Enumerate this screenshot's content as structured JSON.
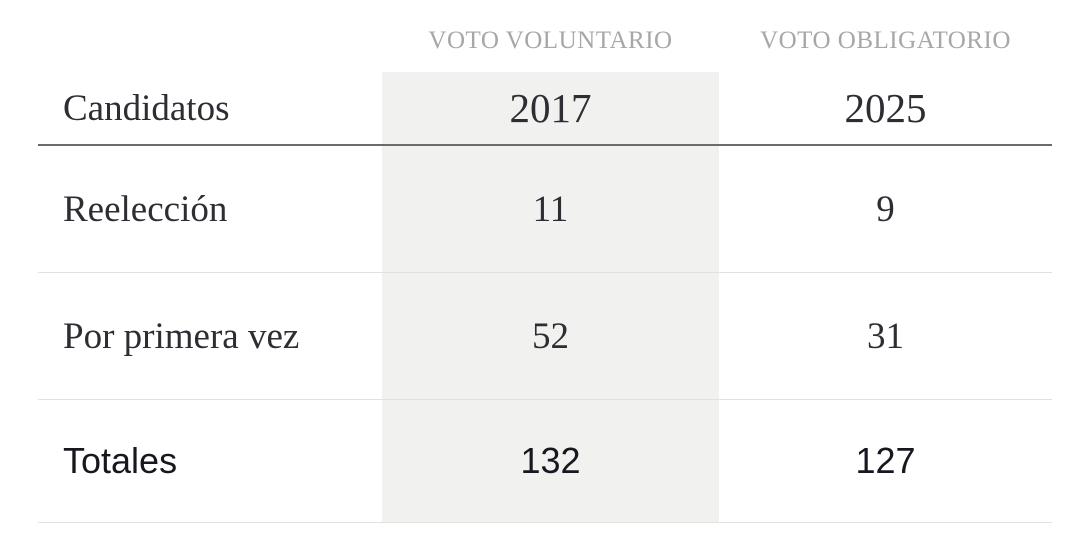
{
  "table": {
    "group_headers": [
      {
        "label": "VOTO VOLUNTARIO"
      },
      {
        "label": "VOTO OBLIGATORIO"
      }
    ],
    "columns": [
      {
        "label": "Candidatos"
      },
      {
        "label": "2017"
      },
      {
        "label": "2025"
      }
    ],
    "rows": [
      {
        "label": "Reelección",
        "values": [
          "11",
          "9"
        ]
      },
      {
        "label": "Por primera vez",
        "values": [
          "52",
          "31"
        ]
      },
      {
        "label": "Totales",
        "values": [
          "132",
          "127"
        ]
      }
    ],
    "colors": {
      "highlight_column_bg": "#f1f1ef",
      "group_header_text": "#a7a7a7",
      "body_text": "#2d2d33",
      "totals_text": "#17171f",
      "header_rule": "#6b6b6b",
      "row_rule": "#e1e1e1"
    }
  },
  "chart_data": {
    "type": "table",
    "title": "",
    "column_groups": [
      "VOTO VOLUNTARIO",
      "VOTO OBLIGATORIO"
    ],
    "columns": [
      "Candidatos",
      "2017",
      "2025"
    ],
    "rows": [
      {
        "Candidatos": "Reelección",
        "2017": 11,
        "2025": 9
      },
      {
        "Candidatos": "Por primera vez",
        "2017": 52,
        "2025": 31
      },
      {
        "Candidatos": "Totales",
        "2017": 132,
        "2025": 127
      }
    ],
    "highlighted_column": "2017"
  }
}
